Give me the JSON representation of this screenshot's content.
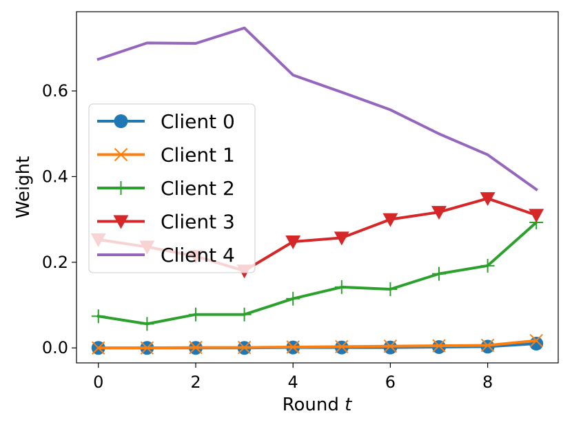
{
  "chart_data": {
    "type": "line",
    "title": "",
    "xlabel": "Round",
    "xlabel_var": "t",
    "ylabel": "Weight",
    "xlim": [
      -0.45,
      9.45
    ],
    "ylim": [
      -0.035,
      0.785
    ],
    "xticks": [
      0,
      2,
      4,
      6,
      8
    ],
    "xtick_labels": [
      "0",
      "2",
      "4",
      "6",
      "8"
    ],
    "yticks": [
      0.0,
      0.2,
      0.4,
      0.6
    ],
    "ytick_labels": [
      "0.0",
      "0.2",
      "0.4",
      "0.6"
    ],
    "grid": false,
    "legend_position": "center-left",
    "x": [
      0,
      1,
      2,
      3,
      4,
      5,
      6,
      7,
      8,
      9
    ],
    "series": [
      {
        "name": "Client 0",
        "color": "#1f77b4",
        "marker": "circle",
        "values": [
          0.0,
          0.0,
          0.0,
          0.0,
          0.001,
          0.001,
          0.001,
          0.002,
          0.003,
          0.01
        ]
      },
      {
        "name": "Client 1",
        "color": "#ff7f0e",
        "marker": "x",
        "values": [
          0.0,
          0.0,
          0.001,
          0.001,
          0.002,
          0.003,
          0.004,
          0.005,
          0.006,
          0.017
        ]
      },
      {
        "name": "Client 2",
        "color": "#2ca02c",
        "marker": "plus",
        "values": [
          0.074,
          0.056,
          0.078,
          0.078,
          0.115,
          0.142,
          0.137,
          0.173,
          0.192,
          0.293
        ]
      },
      {
        "name": "Client 3",
        "color": "#d62728",
        "marker": "triangle-down",
        "values": [
          0.253,
          0.236,
          0.214,
          0.18,
          0.248,
          0.257,
          0.3,
          0.317,
          0.349,
          0.31
        ]
      },
      {
        "name": "Client 4",
        "color": "#9467bd",
        "marker": "none",
        "values": [
          0.674,
          0.712,
          0.711,
          0.747,
          0.637,
          0.597,
          0.556,
          0.5,
          0.451,
          0.37
        ]
      }
    ]
  }
}
